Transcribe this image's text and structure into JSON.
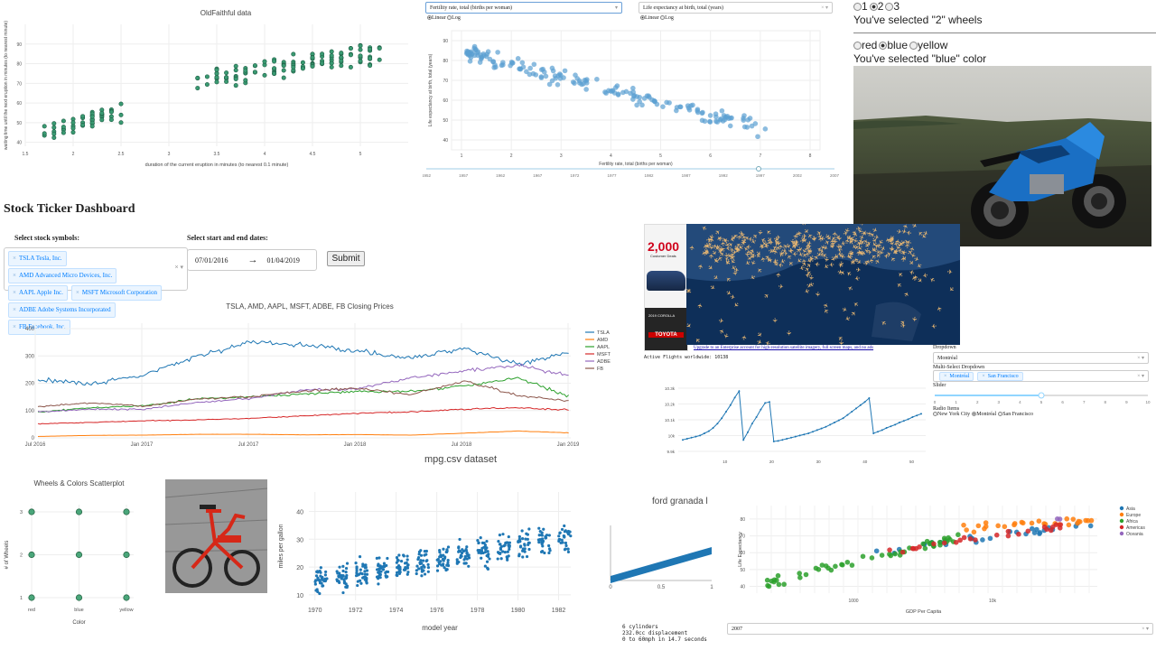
{
  "oldfaithful": {
    "title": "OldFaithful data",
    "xlabel": "duration of the current eruption in minutes (to nearest 0.1 minute)",
    "ylabel": "waiting time until the next eruption in minutes (to nearest minute)",
    "xticks": [
      "1.5",
      "2",
      "2.5",
      "3",
      "3.5",
      "4",
      "4.5",
      "5"
    ],
    "yticks": [
      "40",
      "50",
      "60",
      "70",
      "80",
      "90"
    ],
    "marker_color": "#3a9a72"
  },
  "gapminder": {
    "x_dropdown": "Fertility rate, total (births per woman)",
    "y_dropdown": "Life expectancy at birth, total (years)",
    "x_radio": [
      "Linear",
      "Log"
    ],
    "y_radio": [
      "Linear",
      "Log"
    ],
    "xlabel": "Fertility rate, total (births per woman)",
    "ylabel": "Life expectancy at birth, total (years)",
    "xticks": [
      "1",
      "2",
      "3",
      "4",
      "5",
      "6",
      "7",
      "8"
    ],
    "yticks": [
      "40",
      "50",
      "60",
      "70",
      "80",
      "90"
    ],
    "years": [
      "1952",
      "1957",
      "1962",
      "1967",
      "1972",
      "1977",
      "1982",
      "1987",
      "1992",
      "1997",
      "2002",
      "2007"
    ],
    "point_color": "#5b9fd1"
  },
  "wheels": {
    "options": [
      "1",
      "2",
      "3"
    ],
    "selected": "2",
    "message": "You've selected \"2\" wheels"
  },
  "colors": {
    "options": [
      "red",
      "blue",
      "yellow"
    ],
    "selected": "blue",
    "message": "You've selected \"blue\" color"
  },
  "stock": {
    "title": "Stock Ticker Dashboard",
    "symbols_label": "Select stock symbols:",
    "dates_label": "Select start and end dates:",
    "selected": [
      "TSLA Tesla, Inc.",
      "AMD Advanced Micro Devices, Inc.",
      "AAPL Apple Inc.",
      "MSFT Microsoft Corporation",
      "ADBE Adobe Systems Incorporated",
      "FB Facebook, Inc."
    ],
    "start_date": "07/01/2016",
    "end_date": "01/04/2019",
    "submit": "Submit",
    "chart_title": "TSLA, AMD, AAPL, MSFT, ADBE, FB Closing Prices",
    "yticks": [
      "0",
      "100",
      "200",
      "300",
      "400"
    ],
    "xticks": [
      "Jul 2016",
      "Jan 2017",
      "Jul 2017",
      "Jan 2018",
      "Jul 2018",
      "Jan 2019"
    ]
  },
  "chart_data": [
    {
      "type": "line",
      "title": "TSLA, AMD, AAPL, MSFT, ADBE, FB Closing Prices",
      "x": [
        "Jul 2016",
        "Oct 2016",
        "Jan 2017",
        "Apr 2017",
        "Jul 2017",
        "Oct 2017",
        "Jan 2018",
        "Apr 2018",
        "Jul 2018",
        "Oct 2018",
        "Jan 2019"
      ],
      "ylim": [
        0,
        400
      ],
      "legend": "right",
      "series": [
        {
          "name": "TSLA",
          "color": "#1f77b4",
          "values": [
            215,
            195,
            230,
            300,
            350,
            340,
            320,
            290,
            330,
            270,
            315
          ]
        },
        {
          "name": "AMD",
          "color": "#ff7f0e",
          "values": [
            5,
            9,
            10,
            13,
            13,
            11,
            12,
            10,
            17,
            25,
            18
          ]
        },
        {
          "name": "AAPL",
          "color": "#2ca02c",
          "values": [
            95,
            110,
            118,
            143,
            150,
            160,
            170,
            170,
            190,
            220,
            150
          ]
        },
        {
          "name": "MSFT",
          "color": "#d62728",
          "values": [
            51,
            57,
            62,
            66,
            72,
            80,
            90,
            95,
            105,
            110,
            102
          ]
        },
        {
          "name": "ADBE",
          "color": "#9467bd",
          "values": [
            95,
            105,
            105,
            130,
            145,
            175,
            180,
            220,
            245,
            265,
            225
          ]
        },
        {
          "name": "FB",
          "color": "#8c564b",
          "values": [
            114,
            128,
            116,
            143,
            151,
            172,
            181,
            159,
            208,
            155,
            135
          ]
        }
      ]
    },
    {
      "type": "scatter",
      "title": "Wheels & Colors Scatterplot",
      "xlabel": "Color",
      "ylabel": "# of Wheels",
      "categories": [
        "red",
        "blue",
        "yellow"
      ],
      "yticks": [
        "1",
        "2",
        "3"
      ],
      "points": [
        [
          "red",
          1
        ],
        [
          "red",
          2
        ],
        [
          "red",
          3
        ],
        [
          "blue",
          1
        ],
        [
          "blue",
          2
        ],
        [
          "blue",
          3
        ],
        [
          "yellow",
          1
        ],
        [
          "yellow",
          2
        ],
        [
          "yellow",
          3
        ]
      ]
    },
    {
      "type": "scatter",
      "title": "mpg.csv dataset",
      "xlabel": "model year",
      "ylabel": "miles per gallon",
      "xticks": [
        "1970",
        "1972",
        "1974",
        "1976",
        "1978",
        "1980",
        "1982"
      ],
      "yticks": [
        "10",
        "20",
        "30",
        "40"
      ],
      "xlim": [
        1969.7,
        1982.6
      ],
      "ylim": [
        8,
        47
      ],
      "color": "#1f77b4"
    },
    {
      "type": "scatter",
      "title": "",
      "xlabel": "GDP Per Capita",
      "ylabel": "Life Expectancy",
      "yticks": [
        "40",
        "50",
        "60",
        "70",
        "80"
      ],
      "xticks": [
        "1000",
        "10k"
      ],
      "legend": [
        {
          "name": "Asia",
          "color": "#1f77b4"
        },
        {
          "name": "Europe",
          "color": "#ff7f0e"
        },
        {
          "name": "Africa",
          "color": "#2ca02c"
        },
        {
          "name": "Americas",
          "color": "#d62728"
        },
        {
          "name": "Oceania",
          "color": "#9467bd"
        }
      ]
    }
  ],
  "flights": {
    "ad_number": "2,000",
    "ad_sub": "Customer Deals",
    "ad_model": "2019 COROLLA",
    "ad_brand": "TOYOTA",
    "upgrade_link": "Upgrade to an Enterprise account for high-resolution satellite imagery, full screen maps, and no ads",
    "active_flights": "Active Flights worldwide: 10138",
    "spark_yticks": [
      "10.3k",
      "10.2k",
      "10.1k",
      "10k",
      "9.9k"
    ],
    "spark_xticks": [
      "10",
      "20",
      "30",
      "40",
      "50"
    ]
  },
  "controls": {
    "dropdown_label": "Dropdown",
    "dropdown_value": "Montréal",
    "multi_label": "Multi-Select Dropdown",
    "multi_values": [
      "Montréal",
      "San Francisco"
    ],
    "slider_label": "Slider",
    "slider_ticks": [
      "0",
      "1",
      "2",
      "3",
      "4",
      "5",
      "6",
      "7",
      "8",
      "9",
      "10"
    ],
    "slider_value": 5,
    "radio_label": "Radio Items",
    "radio_options": [
      "New York City",
      "Montréal",
      "San Francisco"
    ],
    "radio_selected": "Montréal"
  },
  "mpg_info": {
    "name": "ford granada l",
    "line1": "6 cylinders",
    "line2": "232.0cc displacement",
    "line3": "0 to 60mph in 14.7 seconds",
    "bar_xticks": [
      "0",
      "0.5",
      "1"
    ]
  },
  "year_dropdown": "2007"
}
